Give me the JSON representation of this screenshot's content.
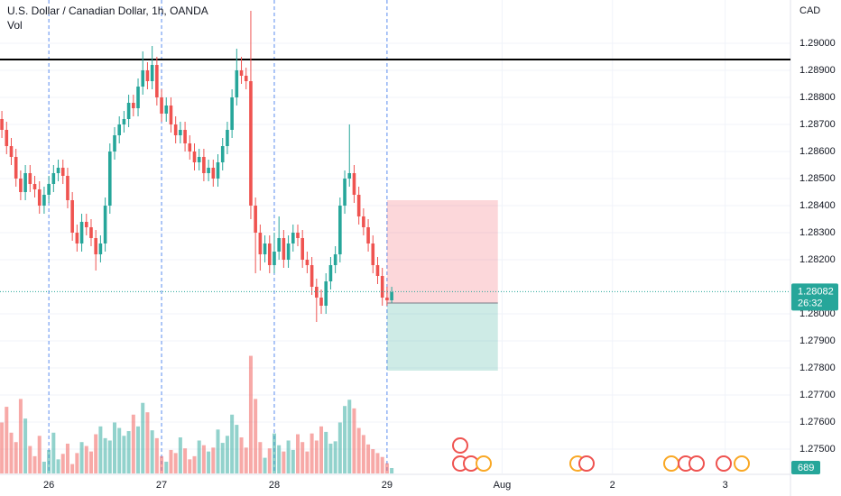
{
  "chart_data": {
    "type": "candlestick",
    "title": "U.S. Dollar / Canadian Dollar, 1h, OANDA",
    "volume_label": "Vol",
    "currency": "CAD",
    "countdown": "26:32",
    "last_price": 1.28082,
    "up_color": "#26a69a",
    "down_color": "#ef5350",
    "xlim": [
      -0.4,
      167.9
    ],
    "xticks": [
      {
        "value": 10,
        "label": "26"
      },
      {
        "value": 34,
        "label": "27"
      },
      {
        "value": 58,
        "label": "28"
      },
      {
        "value": 82,
        "label": "29"
      },
      {
        "value": 106.5,
        "label": "Aug"
      },
      {
        "value": 130,
        "label": "2"
      },
      {
        "value": 154,
        "label": "3"
      }
    ],
    "ylim": [
      1.2741,
      1.2916
    ],
    "yticks": [
      {
        "value": 1.275,
        "label": "1.27500"
      },
      {
        "value": 1.276,
        "label": "1.27600"
      },
      {
        "value": 1.277,
        "label": "1.27700"
      },
      {
        "value": 1.278,
        "label": "1.27800"
      },
      {
        "value": 1.279,
        "label": "1.27900"
      },
      {
        "value": 1.28,
        "label": "1.28000"
      },
      {
        "value": 1.282,
        "label": "1.28200"
      },
      {
        "value": 1.283,
        "label": "1.28300"
      },
      {
        "value": 1.284,
        "label": "1.28400"
      },
      {
        "value": 1.285,
        "label": "1.28500"
      },
      {
        "value": 1.286,
        "label": "1.28600"
      },
      {
        "value": 1.287,
        "label": "1.28700"
      },
      {
        "value": 1.288,
        "label": "1.28800"
      },
      {
        "value": 1.289,
        "label": "1.28900"
      },
      {
        "value": 1.29,
        "label": "1.29000"
      }
    ],
    "volume_lim": [
      0,
      23000
    ],
    "hline": 1.2894,
    "position": {
      "start": 82,
      "end": 105.6,
      "stop": 1.2842,
      "entry": 1.2804,
      "target": 1.2779
    },
    "open": [
      1.2872,
      1.2868,
      1.2862,
      1.2858,
      1.285,
      1.2845,
      1.2852,
      1.2848,
      1.2846,
      1.284,
      1.2844,
      1.2848,
      1.2852,
      1.2854,
      1.2851,
      1.2842,
      1.283,
      1.2826,
      1.2834,
      1.2832,
      1.2828,
      1.2822,
      1.2826,
      1.284,
      1.286,
      1.2866,
      1.287,
      1.2872,
      1.2878,
      1.2876,
      1.2884,
      1.289,
      1.2886,
      1.2892,
      1.288,
      1.2874,
      1.2877,
      1.287,
      1.2866,
      1.2868,
      1.2863,
      1.286,
      1.2856,
      1.2858,
      1.2852,
      1.2854,
      1.285,
      1.2856,
      1.2862,
      1.2868,
      1.288,
      1.289,
      1.2888,
      1.2886,
      1.284,
      1.283,
      1.2822,
      1.2826,
      1.2818,
      1.2823,
      1.2828,
      1.282,
      1.2826,
      1.283,
      1.2828,
      1.282,
      1.2818,
      1.281,
      1.2806,
      1.2803,
      1.2812,
      1.2818,
      1.2822,
      1.284,
      1.285,
      1.2852,
      1.2844,
      1.2836,
      1.2832,
      1.2826,
      1.2818,
      1.2814,
      1.2806,
      1.2805
    ],
    "high": [
      1.2875,
      1.2871,
      1.2865,
      1.2861,
      1.2853,
      1.2855,
      1.2855,
      1.2851,
      1.2849,
      1.2847,
      1.2851,
      1.2855,
      1.2857,
      1.2857,
      1.2854,
      1.2845,
      1.2833,
      1.2837,
      1.2837,
      1.2835,
      1.2831,
      1.2829,
      1.2843,
      1.2863,
      1.2869,
      1.2873,
      1.2875,
      1.2881,
      1.2881,
      1.2887,
      1.2897,
      1.2893,
      1.2899,
      1.2895,
      1.2883,
      1.288,
      1.288,
      1.2873,
      1.2871,
      1.2871,
      1.2866,
      1.2863,
      1.2861,
      1.2861,
      1.2857,
      1.2857,
      1.2859,
      1.2865,
      1.2871,
      1.2883,
      1.2898,
      1.2895,
      1.2891,
      1.2912,
      1.2843,
      1.2833,
      1.2829,
      1.2829,
      1.283,
      1.2836,
      1.2831,
      1.2829,
      1.2833,
      1.2833,
      1.2831,
      1.2823,
      1.2821,
      1.2813,
      1.2809,
      1.2815,
      1.2821,
      1.2825,
      1.2843,
      1.2853,
      1.287,
      1.2855,
      1.2847,
      1.2839,
      1.2835,
      1.2829,
      1.2821,
      1.2817,
      1.281,
      1.281
    ],
    "low": [
      1.2865,
      1.2859,
      1.2855,
      1.2847,
      1.2842,
      1.2842,
      1.2845,
      1.2843,
      1.2837,
      1.2837,
      1.2841,
      1.2845,
      1.2849,
      1.2848,
      1.2839,
      1.2827,
      1.2823,
      1.2823,
      1.2829,
      1.2825,
      1.2816,
      1.2819,
      1.2823,
      1.2837,
      1.2857,
      1.2863,
      1.2867,
      1.2869,
      1.2873,
      1.2873,
      1.2881,
      1.2883,
      1.2883,
      1.2877,
      1.2871,
      1.2871,
      1.2867,
      1.2863,
      1.2863,
      1.286,
      1.2857,
      1.2853,
      1.2853,
      1.2849,
      1.2849,
      1.2847,
      1.2847,
      1.2853,
      1.2859,
      1.2865,
      1.2877,
      1.2885,
      1.2883,
      1.2835,
      1.2815,
      1.2816,
      1.2819,
      1.2815,
      1.2815,
      1.282,
      1.2817,
      1.2817,
      1.2823,
      1.2825,
      1.2817,
      1.2815,
      1.2807,
      1.2797,
      1.28,
      1.28,
      1.2809,
      1.2815,
      1.2819,
      1.2837,
      1.2847,
      1.2841,
      1.2833,
      1.2829,
      1.2823,
      1.2815,
      1.2811,
      1.2803,
      1.2803,
      1.2804
    ],
    "close": [
      1.2868,
      1.2862,
      1.2858,
      1.285,
      1.2845,
      1.2852,
      1.2848,
      1.2846,
      1.284,
      1.2844,
      1.2848,
      1.2852,
      1.2854,
      1.2851,
      1.2842,
      1.283,
      1.2826,
      1.2834,
      1.2832,
      1.2828,
      1.2822,
      1.2826,
      1.284,
      1.286,
      1.2866,
      1.287,
      1.2872,
      1.2878,
      1.2876,
      1.2884,
      1.289,
      1.2886,
      1.2892,
      1.288,
      1.2874,
      1.2877,
      1.287,
      1.2866,
      1.2868,
      1.2863,
      1.286,
      1.2856,
      1.2858,
      1.2852,
      1.2854,
      1.285,
      1.2856,
      1.2862,
      1.2868,
      1.288,
      1.289,
      1.2888,
      1.2886,
      1.284,
      1.283,
      1.2822,
      1.2826,
      1.2818,
      1.2823,
      1.2828,
      1.282,
      1.2826,
      1.283,
      1.2828,
      1.282,
      1.2818,
      1.281,
      1.2806,
      1.2803,
      1.2812,
      1.2818,
      1.2822,
      1.284,
      1.285,
      1.2852,
      1.2844,
      1.2836,
      1.2832,
      1.2826,
      1.2818,
      1.2814,
      1.2806,
      1.2805,
      1.2808
    ],
    "volume": [
      6500,
      8500,
      5200,
      4000,
      9500,
      7000,
      3500,
      2200,
      4800,
      1500,
      3000,
      5200,
      1800,
      2500,
      3800,
      1200,
      2600,
      4000,
      3500,
      2800,
      5000,
      6000,
      4500,
      4200,
      6500,
      5800,
      4800,
      5400,
      7500,
      6000,
      9000,
      7800,
      5500,
      4500,
      2200,
      1500,
      3000,
      2600,
      4600,
      3200,
      1800,
      2200,
      4200,
      3600,
      2800,
      3300,
      5600,
      3900,
      4800,
      7500,
      6200,
      4600,
      3300,
      15000,
      9500,
      4000,
      2000,
      3200,
      5100,
      3600,
      2800,
      4200,
      3000,
      5000,
      4000,
      2800,
      5100,
      4200,
      6000,
      5300,
      3800,
      4100,
      6500,
      8600,
      9400,
      8300,
      5800,
      4900,
      3700,
      3100,
      2600,
      2100,
      1300,
      689
    ]
  }
}
